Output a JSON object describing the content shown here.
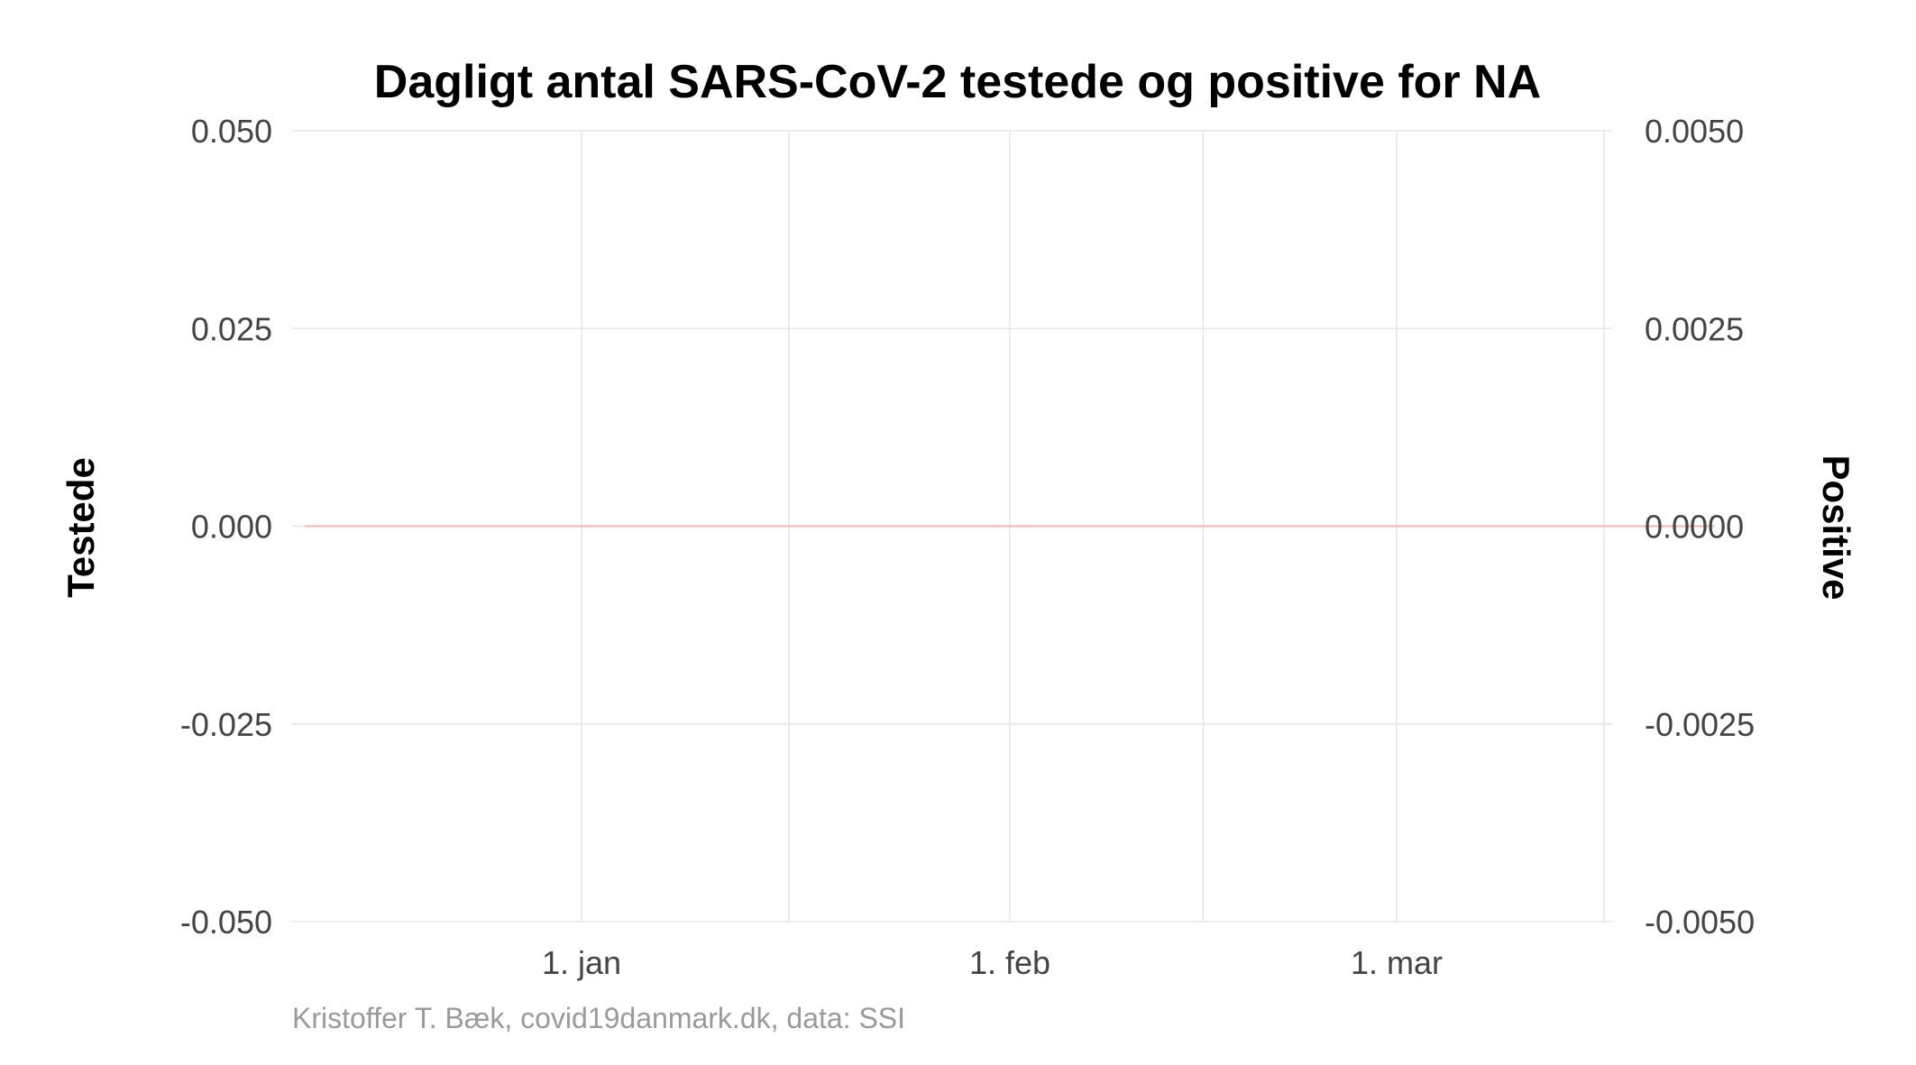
{
  "chart_data": {
    "type": "line",
    "title": "Dagligt antal SARS-CoV-2 testede og positive for NA",
    "ylabel_left": "Testede",
    "ylabel_right": "Positive",
    "caption": "Kristoffer T. Bæk, covid19danmark.dk, data: SSI",
    "x_range": [
      "2020-12-12",
      "2021-03-24"
    ],
    "x_ticks": [
      {
        "date": "2021-01-01",
        "label": "1. jan"
      },
      {
        "date": "2021-02-01",
        "label": "1. feb"
      },
      {
        "date": "2021-03-01",
        "label": "1. mar"
      }
    ],
    "x_minor_gridlines": [
      "2020-12-01",
      "2021-01-16",
      "2021-02-15",
      "2021-03-16"
    ],
    "left_axis": {
      "ylim": [
        -0.05,
        0.05
      ],
      "ticks": [
        {
          "value": 0.05,
          "label": "0.050"
        },
        {
          "value": 0.025,
          "label": "0.025"
        },
        {
          "value": 0,
          "label": "0.000"
        },
        {
          "value": -0.025,
          "label": "-0.025"
        },
        {
          "value": -0.05,
          "label": "-0.050"
        }
      ]
    },
    "right_axis": {
      "ylim": [
        -0.005,
        0.005
      ],
      "ticks": [
        {
          "value": 0.005,
          "label": "0.0050"
        },
        {
          "value": 0.0025,
          "label": "0.0025"
        },
        {
          "value": 0,
          "label": "0.0000"
        },
        {
          "value": -0.0025,
          "label": "-0.0025"
        },
        {
          "value": -0.005,
          "label": "-0.0050"
        }
      ]
    },
    "series": [
      {
        "axis": "left",
        "color": "#f4b6a8",
        "points": [
          {
            "x": "2020-12-12",
            "y": 0
          },
          {
            "x": "2021-03-24",
            "y": 0
          }
        ]
      }
    ],
    "grid": true
  }
}
